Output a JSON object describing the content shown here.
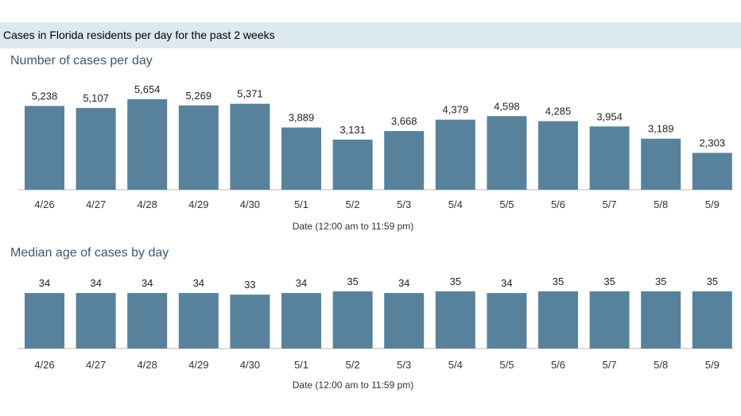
{
  "header": {
    "title": "Cases in Florida residents per day for the past 2 weeks"
  },
  "chart_data": [
    {
      "type": "bar",
      "title": "Number of cases per day",
      "xlabel": "Date (12:00 am to 11:59 pm)",
      "ylabel": "",
      "categories": [
        "4/26",
        "4/27",
        "4/28",
        "4/29",
        "4/30",
        "5/1",
        "5/2",
        "5/3",
        "5/4",
        "5/5",
        "5/6",
        "5/7",
        "5/8",
        "5/9"
      ],
      "values": [
        5238,
        5107,
        5654,
        5269,
        5371,
        3889,
        3131,
        3668,
        4379,
        4598,
        4285,
        3954,
        3189,
        2303
      ],
      "value_labels": [
        "5,238",
        "5,107",
        "5,654",
        "5,269",
        "5,371",
        "3,889",
        "3,131",
        "3,668",
        "4,379",
        "4,598",
        "4,285",
        "3,954",
        "3,189",
        "2,303"
      ],
      "ylim": [
        0,
        5654
      ],
      "grid": false,
      "bar_color": "#58829b"
    },
    {
      "type": "bar",
      "title": "Median age of cases by day",
      "xlabel": "Date (12:00 am to 11:59 pm)",
      "ylabel": "",
      "categories": [
        "4/26",
        "4/27",
        "4/28",
        "4/29",
        "4/30",
        "5/1",
        "5/2",
        "5/3",
        "5/4",
        "5/5",
        "5/6",
        "5/7",
        "5/8",
        "5/9"
      ],
      "values": [
        34,
        34,
        34,
        34,
        33,
        34,
        35,
        34,
        35,
        34,
        35,
        35,
        35,
        35
      ],
      "value_labels": [
        "34",
        "34",
        "34",
        "34",
        "33",
        "34",
        "35",
        "34",
        "35",
        "34",
        "35",
        "35",
        "35",
        "35"
      ],
      "ylim": [
        0,
        35
      ],
      "grid": false,
      "bar_color": "#58829b"
    }
  ]
}
